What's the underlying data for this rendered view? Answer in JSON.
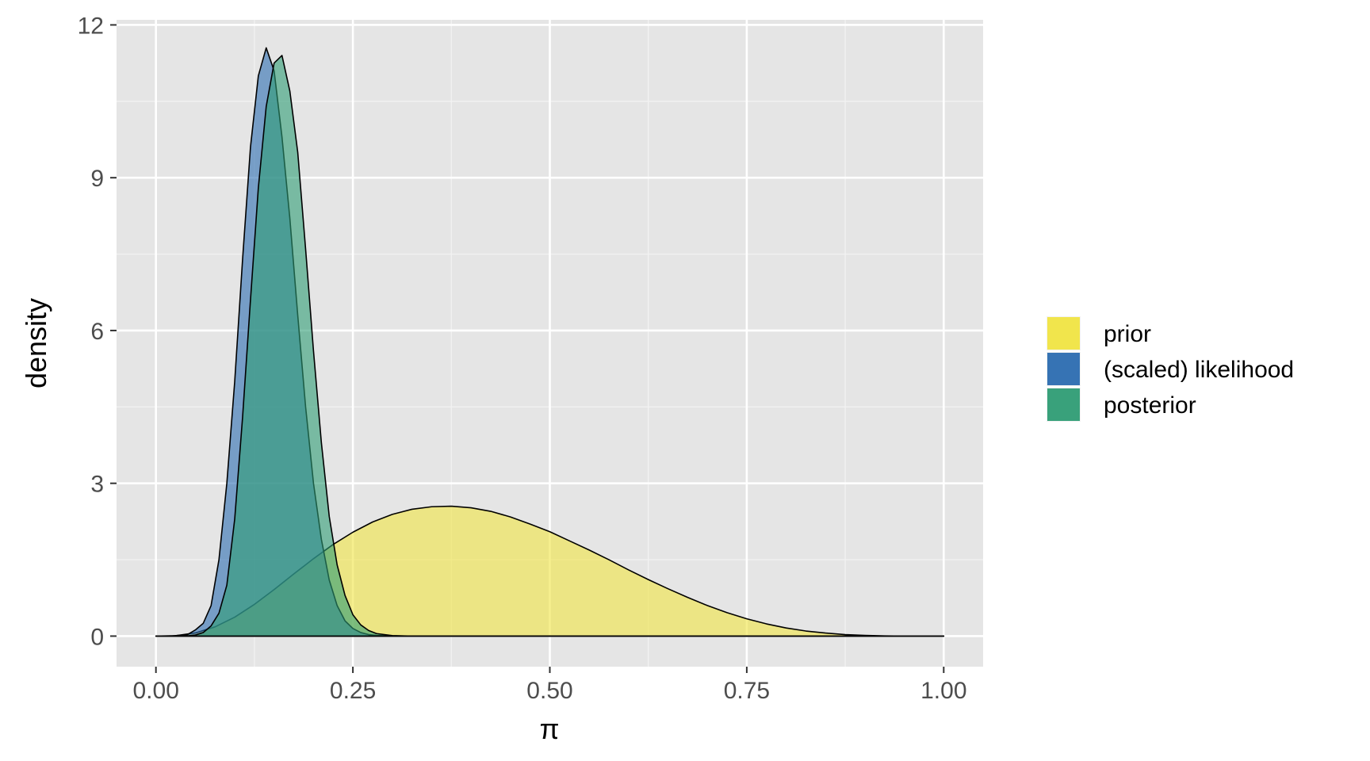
{
  "chart_data": {
    "type": "area",
    "xlabel": "π",
    "ylabel": "density",
    "xlim": [
      -0.05,
      1.05
    ],
    "ylim": [
      -0.6,
      12.1
    ],
    "x_ticks": [
      0.0,
      0.25,
      0.5,
      0.75,
      1.0
    ],
    "x_tick_labels": [
      "0.00",
      "0.25",
      "0.50",
      "0.75",
      "1.00"
    ],
    "y_ticks": [
      0,
      3,
      6,
      9,
      12
    ],
    "y_tick_labels": [
      "0",
      "3",
      "6",
      "9",
      "12"
    ],
    "grid": true,
    "legend_position": "right",
    "series": [
      {
        "name": "prior",
        "color": "#F0E442",
        "x": [
          0.0,
          0.025,
          0.05,
          0.075,
          0.1,
          0.125,
          0.15,
          0.175,
          0.2,
          0.225,
          0.25,
          0.275,
          0.3,
          0.325,
          0.35,
          0.375,
          0.4,
          0.425,
          0.45,
          0.475,
          0.5,
          0.525,
          0.55,
          0.575,
          0.6,
          0.625,
          0.65,
          0.675,
          0.7,
          0.725,
          0.75,
          0.775,
          0.8,
          0.825,
          0.85,
          0.875,
          0.9,
          0.925,
          0.95,
          0.975,
          1.0
        ],
        "y": [
          0,
          0.009,
          0.062,
          0.181,
          0.372,
          0.623,
          0.914,
          1.22,
          1.52,
          1.8,
          2.04,
          2.24,
          2.39,
          2.49,
          2.54,
          2.55,
          2.52,
          2.45,
          2.34,
          2.2,
          2.05,
          1.87,
          1.69,
          1.5,
          1.3,
          1.11,
          0.93,
          0.76,
          0.6,
          0.46,
          0.34,
          0.24,
          0.16,
          0.1,
          0.06,
          0.03,
          0.013,
          0.004,
          0.001,
          0,
          0
        ]
      },
      {
        "name": "(scaled) likelihood",
        "color": "#2B6CB0",
        "x": [
          0.0,
          0.02,
          0.04,
          0.05,
          0.06,
          0.07,
          0.08,
          0.09,
          0.1,
          0.11,
          0.12,
          0.13,
          0.14,
          0.15,
          0.16,
          0.17,
          0.18,
          0.19,
          0.2,
          0.21,
          0.22,
          0.23,
          0.24,
          0.25,
          0.26,
          0.27,
          0.28,
          0.3,
          0.32,
          0.35,
          0.4,
          0.5,
          1.0
        ],
        "y": [
          0,
          0.002,
          0.03,
          0.12,
          0.25,
          0.6,
          1.5,
          3.0,
          5.0,
          7.4,
          9.6,
          11.0,
          11.55,
          11.1,
          9.8,
          8.2,
          6.3,
          4.5,
          3.0,
          1.9,
          1.1,
          0.6,
          0.3,
          0.15,
          0.07,
          0.03,
          0.015,
          0.003,
          0,
          0,
          0,
          0,
          0
        ]
      },
      {
        "name": "posterior",
        "color": "#2E9C74",
        "x": [
          0.0,
          0.02,
          0.04,
          0.05,
          0.06,
          0.07,
          0.08,
          0.09,
          0.1,
          0.11,
          0.12,
          0.13,
          0.14,
          0.15,
          0.16,
          0.17,
          0.18,
          0.19,
          0.2,
          0.21,
          0.22,
          0.23,
          0.24,
          0.25,
          0.26,
          0.27,
          0.28,
          0.3,
          0.32,
          0.35,
          0.4,
          0.5,
          1.0
        ],
        "y": [
          0,
          0,
          0.005,
          0.02,
          0.07,
          0.2,
          0.45,
          1.0,
          2.3,
          4.3,
          6.6,
          8.8,
          10.4,
          11.25,
          11.4,
          10.7,
          9.5,
          7.6,
          5.6,
          3.8,
          2.35,
          1.4,
          0.8,
          0.42,
          0.22,
          0.11,
          0.05,
          0.01,
          0.002,
          0,
          0,
          0,
          0
        ]
      }
    ]
  }
}
